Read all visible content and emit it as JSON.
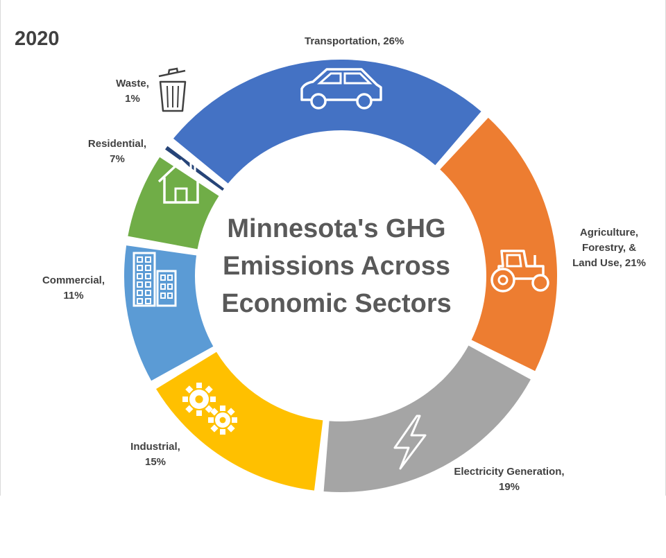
{
  "year_label": "2020",
  "chart_data": {
    "type": "pie",
    "title": "Minnesota's GHG Emissions Across Economic Sectors",
    "title_lines": [
      "Minnesota's GHG",
      "Emissions Across",
      "Economic Sectors"
    ],
    "series": [
      {
        "name": "Transportation",
        "value": 26,
        "label_lines": [
          "Transportation, 26%"
        ],
        "color": "#4472c4",
        "icon": "car-icon"
      },
      {
        "name": "Agriculture, Forestry, & Land Use",
        "value": 21,
        "label_lines": [
          "Agriculture,",
          "Forestry, &",
          "Land Use, 21%"
        ],
        "color": "#ed7d31",
        "icon": "tractor-icon"
      },
      {
        "name": "Electricity Generation",
        "value": 19,
        "label_lines": [
          "Electricity Generation,",
          "19%"
        ],
        "color": "#a5a5a5",
        "icon": "lightning-bolt-icon"
      },
      {
        "name": "Industrial",
        "value": 15,
        "label_lines": [
          "Industrial,",
          "15%"
        ],
        "color": "#ffc000",
        "icon": "gears-icon"
      },
      {
        "name": "Commercial",
        "value": 11,
        "label_lines": [
          "Commercial,",
          "11%"
        ],
        "color": "#5b9bd5",
        "icon": "office-building-icon"
      },
      {
        "name": "Residential",
        "value": 7,
        "label_lines": [
          "Residential,",
          "7%"
        ],
        "color": "#70ad47",
        "icon": "house-icon"
      },
      {
        "name": "Waste",
        "value": 1,
        "label_lines": [
          "Waste,",
          "1%"
        ],
        "color": "#264478",
        "icon": "trash-can-icon"
      }
    ]
  }
}
